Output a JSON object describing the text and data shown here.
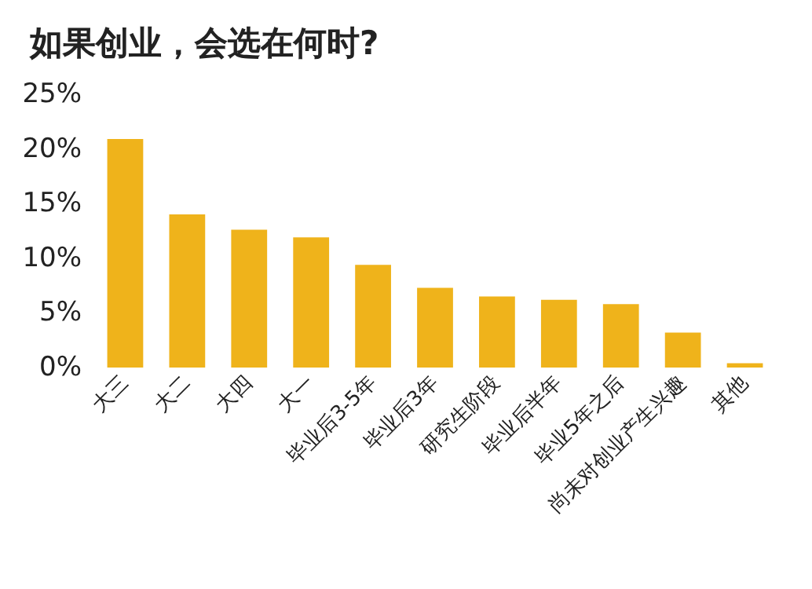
{
  "chart_data": {
    "type": "bar",
    "title": "如果创业，会选在何时?",
    "categories": [
      "大三",
      "大二",
      "大四",
      "大一",
      "毕业后3-5年",
      "毕业后3年",
      "研究生阶段",
      "毕业后半年",
      "毕业5年之后",
      "尚未对创业产生兴趣",
      "其他"
    ],
    "values": [
      20.9,
      14.0,
      12.6,
      11.9,
      9.4,
      7.3,
      6.5,
      6.2,
      5.8,
      3.2,
      0.4
    ],
    "color": "#efb31b",
    "ylim": [
      0,
      25
    ],
    "yticks": [
      {
        "value": 0,
        "label": "0%"
      },
      {
        "value": 5,
        "label": "5%"
      },
      {
        "value": 10,
        "label": "10%"
      },
      {
        "value": 15,
        "label": "15%"
      },
      {
        "value": 20,
        "label": "20%"
      },
      {
        "value": 25,
        "label": "25%"
      }
    ],
    "grid": false
  }
}
